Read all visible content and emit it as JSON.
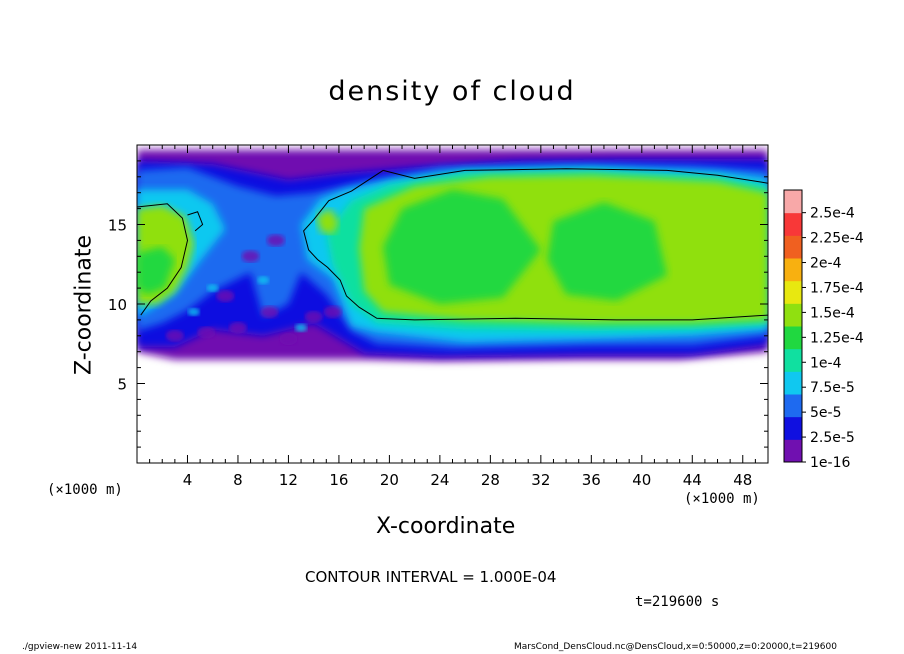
{
  "chart_data": {
    "type": "heatmap",
    "title": "density of cloud",
    "xlabel": "X-coordinate",
    "ylabel": "Z-coordinate",
    "x_unit_label": "(×1000 m)",
    "x_unit_label_right": "(×1000 m)",
    "xlim": [
      0,
      50
    ],
    "ylim": [
      0,
      20
    ],
    "x_ticks": [
      4,
      8,
      12,
      16,
      20,
      24,
      28,
      32,
      36,
      40,
      44,
      48
    ],
    "y_ticks": [
      5,
      10,
      15
    ],
    "colorbar_ticks": [
      "1e-16",
      "2.5e-5",
      "5e-5",
      "7.5e-5",
      "1e-4",
      "1.25e-4",
      "1.5e-4",
      "1.75e-4",
      "2e-4",
      "2.25e-4",
      "2.5e-4"
    ],
    "colorbar_colors": [
      "#7010b0",
      "#1010e0",
      "#1e6af0",
      "#10c8f0",
      "#10e0a0",
      "#20d840",
      "#90e010",
      "#e8e810",
      "#f8b010",
      "#f06020",
      "#f83838",
      "#f8a8a8"
    ],
    "contour_level": 0.0001,
    "contour_interval": "CONTOUR INTERVAL = 1.000E-04",
    "time_label": "t=219600 s"
  },
  "footer": {
    "left": "./gpview-new  2011-11-14",
    "right": "MarsCond_DensCloud.nc@DensCloud,x=0:50000,z=0:20000,t=219600"
  }
}
